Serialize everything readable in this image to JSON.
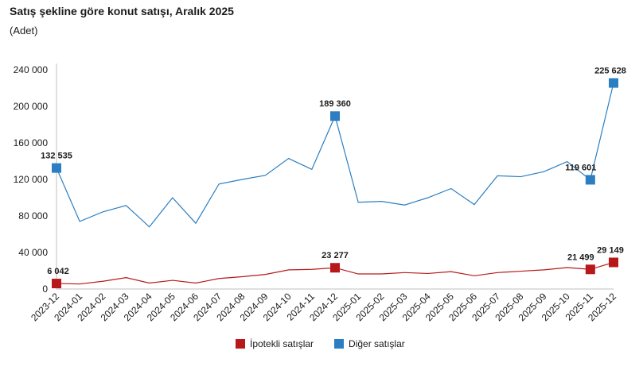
{
  "chart_data": {
    "type": "line",
    "title": "Satış şekline göre konut satışı, Aralık 2025",
    "subtitle": "(Adet)",
    "categories": [
      "2023-12",
      "2024-01",
      "2024-02",
      "2024-03",
      "2024-04",
      "2024-05",
      "2024-06",
      "2024-07",
      "2024-08",
      "2024-09",
      "2024-10",
      "2024-11",
      "2024-12",
      "2025-01",
      "2025-02",
      "2025-03",
      "2025-04",
      "2025-05",
      "2025-06",
      "2025-07",
      "2025-08",
      "2025-09",
      "2025-10",
      "2025-11",
      "2025-12"
    ],
    "ylim": [
      0,
      240000
    ],
    "yticks": [
      0,
      40000,
      80000,
      120000,
      160000,
      200000,
      240000
    ],
    "ytick_labels": [
      "0",
      "40 000",
      "80 000",
      "120 000",
      "160 000",
      "200 000",
      "240 000"
    ],
    "series": [
      {
        "name": "İpotekli satışlar",
        "color": "#b7191b",
        "values": [
          6042,
          5500,
          8500,
          12500,
          6500,
          9500,
          6500,
          11500,
          13500,
          16000,
          21000,
          21500,
          23277,
          16500,
          16500,
          18000,
          17000,
          19000,
          14500,
          18000,
          19500,
          21000,
          23500,
          21499,
          29149
        ],
        "highlights": [
          {
            "index": 0,
            "label": "6 042"
          },
          {
            "index": 12,
            "label": "23 277"
          },
          {
            "index": 23,
            "label": "21 499"
          },
          {
            "index": 24,
            "label": "29 149"
          }
        ]
      },
      {
        "name": "Diğer satışlar",
        "color": "#2b7ec2",
        "values": [
          132535,
          74000,
          84500,
          91500,
          68000,
          100000,
          72000,
          115000,
          120000,
          124500,
          143000,
          131000,
          189360,
          95000,
          96000,
          92000,
          100000,
          110000,
          92500,
          124000,
          123000,
          128500,
          139500,
          119601,
          225628
        ],
        "highlights": [
          {
            "index": 0,
            "label": "132 535"
          },
          {
            "index": 12,
            "label": "189 360"
          },
          {
            "index": 23,
            "label": "119 601"
          },
          {
            "index": 24,
            "label": "225 628"
          }
        ]
      }
    ],
    "legend": {
      "position": "bottom"
    }
  }
}
